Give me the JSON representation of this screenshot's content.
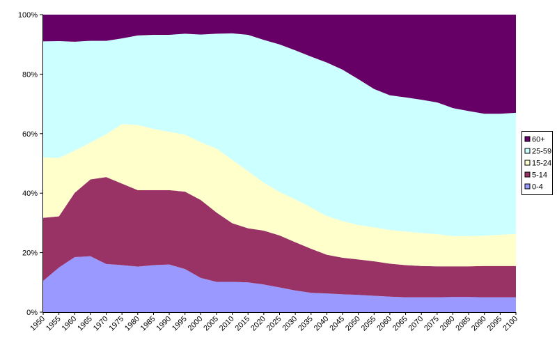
{
  "chart_data": {
    "type": "area",
    "stacked": true,
    "percent": true,
    "title": "",
    "xlabel": "",
    "ylabel": "",
    "x": [
      1950,
      1955,
      1960,
      1965,
      1970,
      1975,
      1980,
      1985,
      1990,
      1995,
      2000,
      2005,
      2010,
      2015,
      2020,
      2025,
      2030,
      2035,
      2040,
      2045,
      2050,
      2055,
      2060,
      2065,
      2070,
      2075,
      2080,
      2085,
      2090,
      2095,
      2100
    ],
    "x_tick_labels": [
      "1950",
      "1955",
      "1960",
      "1965",
      "1970",
      "1975",
      "1980",
      "1985",
      "1990",
      "1995",
      "2000",
      "2005",
      "2010",
      "2015",
      "2020",
      "2025",
      "2030",
      "2035",
      "2040",
      "2045",
      "2050",
      "2055",
      "2060",
      "2065",
      "2070",
      "2075",
      "2080",
      "2085",
      "2090",
      "2095",
      "2100"
    ],
    "ylim": [
      0,
      100
    ],
    "y_tick_labels": [
      "0%",
      "20%",
      "40%",
      "60%",
      "80%",
      "100%"
    ],
    "grid": false,
    "legend_position": "right",
    "series": [
      {
        "name": "0-4",
        "color": "#9999ff",
        "values": [
          10.5,
          15.0,
          18.5,
          18.8,
          16.2,
          15.8,
          15.3,
          15.8,
          16.0,
          14.5,
          11.5,
          10.2,
          10.2,
          10.0,
          9.3,
          8.3,
          7.3,
          6.5,
          6.3,
          6.0,
          5.8,
          5.5,
          5.2,
          5.0,
          5.0,
          5.0,
          5.1,
          5.1,
          5.0,
          5.0,
          5.0
        ]
      },
      {
        "name": "5-14",
        "color": "#993366",
        "values": [
          21.2,
          17.2,
          21.6,
          25.8,
          29.2,
          27.4,
          25.7,
          25.2,
          25.0,
          26.0,
          26.2,
          23.3,
          19.7,
          18.2,
          18.1,
          17.5,
          16.2,
          14.8,
          13.0,
          12.3,
          11.9,
          11.6,
          11.1,
          10.8,
          10.5,
          10.4,
          10.3,
          10.3,
          10.5,
          10.5,
          10.5
        ]
      },
      {
        "name": "15-24",
        "color": "#ffffcc",
        "values": [
          20.3,
          19.6,
          14.2,
          12.4,
          14.4,
          20.0,
          21.9,
          20.6,
          19.6,
          19.2,
          19.4,
          21.5,
          21.3,
          19.2,
          16.1,
          14.6,
          14.4,
          13.9,
          13.0,
          12.3,
          11.6,
          11.4,
          11.3,
          11.3,
          11.1,
          10.8,
          10.2,
          10.2,
          10.2,
          10.5,
          10.8
        ]
      },
      {
        "name": "25-59",
        "color": "#ccffff",
        "values": [
          39.0,
          39.3,
          36.6,
          34.2,
          31.4,
          28.8,
          30.1,
          31.6,
          32.6,
          33.9,
          36.2,
          38.6,
          42.5,
          45.8,
          48.0,
          49.6,
          50.1,
          50.7,
          51.6,
          50.9,
          49.0,
          46.5,
          45.3,
          45.1,
          44.8,
          44.3,
          43.0,
          42.0,
          41.0,
          40.7,
          40.7
        ]
      },
      {
        "name": "60+",
        "color": "#660066",
        "values": [
          9.0,
          8.9,
          9.1,
          8.8,
          8.8,
          8.0,
          7.0,
          6.8,
          6.8,
          6.4,
          6.7,
          6.4,
          6.3,
          6.8,
          8.5,
          10.0,
          12.0,
          14.1,
          16.1,
          18.5,
          21.7,
          25.0,
          27.1,
          27.8,
          28.6,
          29.5,
          31.4,
          32.4,
          33.3,
          33.3,
          33.0
        ]
      }
    ],
    "legend_order": [
      "60+",
      "25-59",
      "15-24",
      "5-14",
      "0-4"
    ]
  }
}
